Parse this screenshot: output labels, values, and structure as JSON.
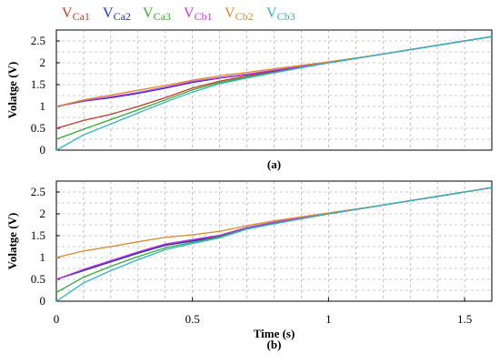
{
  "legend": [
    {
      "base": "V",
      "sub": "Ca1",
      "color": "#c0392b"
    },
    {
      "base": "V",
      "sub": "Ca2",
      "color": "#1f2fd0"
    },
    {
      "base": "V",
      "sub": "Ca3",
      "color": "#3aa832"
    },
    {
      "base": "V",
      "sub": "Cb1",
      "color": "#c23bd9"
    },
    {
      "base": "V",
      "sub": "Cb2",
      "color": "#d98a2b"
    },
    {
      "base": "V",
      "sub": "Cb3",
      "color": "#2fb3c8"
    }
  ],
  "chart_data": [
    {
      "type": "line",
      "caption": "(a)",
      "ylabel": "Volatge (V)",
      "xlabel": "",
      "xlim": [
        0,
        1.6
      ],
      "ylim": [
        0,
        2.75
      ],
      "yticks": [
        "0",
        "0.5",
        "1",
        "1.5",
        "2",
        "2.5"
      ],
      "xticks": [],
      "grid": true,
      "series": [
        {
          "name": "VCa1",
          "color": "#c0392b",
          "x": [
            0,
            0.1,
            0.2,
            0.3,
            0.4,
            0.5,
            0.6,
            0.7,
            0.8,
            1.0,
            1.2,
            1.4,
            1.6
          ],
          "y": [
            0.5,
            0.68,
            0.82,
            1.0,
            1.2,
            1.42,
            1.58,
            1.7,
            1.8,
            2.0,
            2.2,
            2.4,
            2.6
          ]
        },
        {
          "name": "VCa2",
          "color": "#1f2fd0",
          "x": [
            0,
            0.1,
            0.2,
            0.3,
            0.4,
            0.5,
            0.6,
            0.7,
            0.8,
            1.0,
            1.2,
            1.4,
            1.6
          ],
          "y": [
            1.0,
            1.12,
            1.2,
            1.3,
            1.42,
            1.55,
            1.65,
            1.73,
            1.82,
            2.0,
            2.2,
            2.4,
            2.6
          ]
        },
        {
          "name": "VCa3",
          "color": "#3aa832",
          "x": [
            0,
            0.1,
            0.2,
            0.3,
            0.4,
            0.5,
            0.6,
            0.7,
            0.8,
            1.0,
            1.2,
            1.4,
            1.6
          ],
          "y": [
            0.25,
            0.48,
            0.7,
            0.92,
            1.15,
            1.38,
            1.55,
            1.67,
            1.78,
            2.0,
            2.2,
            2.4,
            2.6
          ]
        },
        {
          "name": "VCb1",
          "color": "#c23bd9",
          "x": [
            0,
            0.1,
            0.2,
            0.3,
            0.4,
            0.5,
            0.6,
            0.7,
            0.8,
            1.0,
            1.2,
            1.4,
            1.6
          ],
          "y": [
            1.0,
            1.13,
            1.22,
            1.32,
            1.44,
            1.57,
            1.66,
            1.74,
            1.83,
            2.0,
            2.2,
            2.4,
            2.6
          ]
        },
        {
          "name": "VCb2",
          "color": "#d98a2b",
          "x": [
            0,
            0.1,
            0.2,
            0.3,
            0.4,
            0.5,
            0.6,
            0.7,
            0.8,
            1.0,
            1.2,
            1.4,
            1.6
          ],
          "y": [
            1.0,
            1.15,
            1.26,
            1.37,
            1.48,
            1.6,
            1.7,
            1.78,
            1.86,
            2.02,
            2.2,
            2.4,
            2.6
          ]
        },
        {
          "name": "VCb3",
          "color": "#2fb3c8",
          "x": [
            0,
            0.1,
            0.2,
            0.3,
            0.4,
            0.5,
            0.6,
            0.7,
            0.8,
            1.0,
            1.2,
            1.4,
            1.6
          ],
          "y": [
            0.0,
            0.35,
            0.6,
            0.85,
            1.1,
            1.33,
            1.52,
            1.65,
            1.77,
            2.0,
            2.2,
            2.4,
            2.6
          ]
        }
      ]
    },
    {
      "type": "line",
      "caption": "(b)",
      "ylabel": "Volatge (V)",
      "xlabel": "Time (s)",
      "xlim": [
        0,
        1.6
      ],
      "ylim": [
        0,
        2.75
      ],
      "yticks": [
        "0",
        "0.5",
        "1",
        "1.5",
        "2",
        "2.5"
      ],
      "xticks": [
        "0",
        "0.5",
        "1",
        "1.5"
      ],
      "grid": true,
      "series": [
        {
          "name": "VCa1",
          "color": "#c0392b",
          "x": [
            0,
            0.1,
            0.2,
            0.3,
            0.4,
            0.5,
            0.6,
            0.7,
            0.8,
            1.0,
            1.2,
            1.4,
            1.6
          ],
          "y": [
            0.5,
            0.72,
            0.92,
            1.12,
            1.3,
            1.4,
            1.5,
            1.68,
            1.8,
            2.0,
            2.2,
            2.4,
            2.6
          ]
        },
        {
          "name": "VCa2",
          "color": "#1f2fd0",
          "x": [
            0,
            0.1,
            0.2,
            0.3,
            0.4,
            0.5,
            0.6,
            0.7,
            0.8,
            1.0,
            1.2,
            1.4,
            1.6
          ],
          "y": [
            0.5,
            0.7,
            0.9,
            1.1,
            1.28,
            1.38,
            1.48,
            1.67,
            1.79,
            2.0,
            2.2,
            2.4,
            2.6
          ]
        },
        {
          "name": "VCa3",
          "color": "#3aa832",
          "x": [
            0,
            0.1,
            0.2,
            0.3,
            0.4,
            0.5,
            0.6,
            0.7,
            0.8,
            1.0,
            1.2,
            1.4,
            1.6
          ],
          "y": [
            0.2,
            0.55,
            0.8,
            1.02,
            1.22,
            1.35,
            1.47,
            1.66,
            1.78,
            2.0,
            2.2,
            2.4,
            2.6
          ]
        },
        {
          "name": "VCb1",
          "color": "#c23bd9",
          "x": [
            0,
            0.1,
            0.2,
            0.3,
            0.4,
            0.5,
            0.6,
            0.7,
            0.8,
            1.0,
            1.2,
            1.4,
            1.6
          ],
          "y": [
            0.5,
            0.73,
            0.93,
            1.13,
            1.31,
            1.41,
            1.51,
            1.69,
            1.81,
            2.0,
            2.2,
            2.4,
            2.6
          ]
        },
        {
          "name": "VCb2",
          "color": "#d98a2b",
          "x": [
            0,
            0.1,
            0.2,
            0.3,
            0.4,
            0.5,
            0.6,
            0.7,
            0.8,
            1.0,
            1.2,
            1.4,
            1.6
          ],
          "y": [
            1.0,
            1.15,
            1.25,
            1.36,
            1.46,
            1.52,
            1.6,
            1.73,
            1.84,
            2.02,
            2.2,
            2.4,
            2.6
          ]
        },
        {
          "name": "VCb3",
          "color": "#2fb3c8",
          "x": [
            0,
            0.1,
            0.2,
            0.3,
            0.4,
            0.5,
            0.6,
            0.7,
            0.8,
            1.0,
            1.2,
            1.4,
            1.6
          ],
          "y": [
            0.0,
            0.42,
            0.7,
            0.95,
            1.18,
            1.32,
            1.45,
            1.65,
            1.77,
            2.0,
            2.2,
            2.4,
            2.6
          ]
        }
      ]
    }
  ]
}
